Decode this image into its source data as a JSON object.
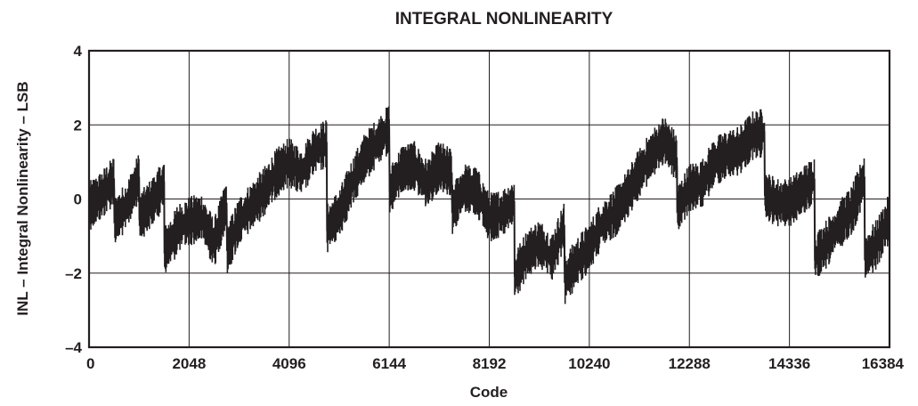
{
  "chart_data": {
    "type": "line",
    "title": "INTEGRAL NONLINEARITY",
    "xlabel": "Code",
    "ylabel": "INL – Integral Nonlinearity – LSB",
    "xlim": [
      0,
      16384
    ],
    "ylim": [
      -4,
      4
    ],
    "x_ticks": [
      0,
      2048,
      4096,
      6144,
      8192,
      10240,
      12288,
      14336,
      16384
    ],
    "x_tick_labels": [
      "0",
      "2048",
      "4096",
      "6144",
      "8192",
      "10240",
      "12288",
      "14336",
      "16384"
    ],
    "y_ticks": [
      -4,
      -2,
      0,
      2,
      4
    ],
    "y_tick_labels": [
      "–4",
      "–2",
      "0",
      "2",
      "4"
    ],
    "grid": true,
    "series": [
      {
        "color": "#231f20",
        "x": [
          0,
          256,
          512,
          520,
          768,
          1024,
          1032,
          1280,
          1536,
          1544,
          1792,
          1800,
          2048,
          2304,
          2560,
          2816,
          2824,
          3072,
          3328,
          3584,
          3840,
          4096,
          4352,
          4608,
          4864,
          4872,
          5120,
          5376,
          5632,
          5888,
          6144,
          6152,
          6400,
          6656,
          6912,
          7168,
          7424,
          7432,
          7680,
          7936,
          8192,
          8448,
          8704,
          8712,
          8960,
          9216,
          9472,
          9728,
          9736,
          9984,
          10240,
          10496,
          10752,
          11008,
          11264,
          11520,
          11776,
          12032,
          12040,
          12288,
          12544,
          12800,
          13056,
          13312,
          13568,
          13824,
          13832,
          14080,
          14336,
          14592,
          14848,
          14856,
          15104,
          15360,
          15616,
          15872,
          15880,
          16128,
          16384
        ],
        "values": [
          -0.2,
          0.1,
          0.5,
          -0.6,
          -0.2,
          0.6,
          -0.5,
          -0.1,
          0.4,
          -1.4,
          -0.9,
          -0.8,
          -0.6,
          -0.5,
          -1.2,
          -0.1,
          -1.4,
          -0.6,
          -0.2,
          0.2,
          0.7,
          1.0,
          0.7,
          1.3,
          1.5,
          -0.8,
          -0.4,
          0.4,
          1.1,
          1.5,
          1.9,
          0.2,
          0.8,
          0.9,
          0.4,
          0.9,
          0.7,
          -0.3,
          0.3,
          0.2,
          -0.5,
          -0.4,
          -0.1,
          -2.1,
          -1.5,
          -1.2,
          -1.6,
          -0.7,
          -2.2,
          -1.7,
          -1.3,
          -0.7,
          -0.4,
          0.1,
          0.7,
          1.2,
          1.6,
          1.1,
          -0.3,
          0.3,
          0.4,
          1.0,
          1.2,
          1.3,
          1.7,
          1.8,
          0.1,
          -0.1,
          -0.1,
          0.2,
          0.5,
          -1.6,
          -1.2,
          -0.7,
          -0.3,
          0.6,
          -1.6,
          -1.2,
          -0.5
        ]
      }
    ]
  }
}
